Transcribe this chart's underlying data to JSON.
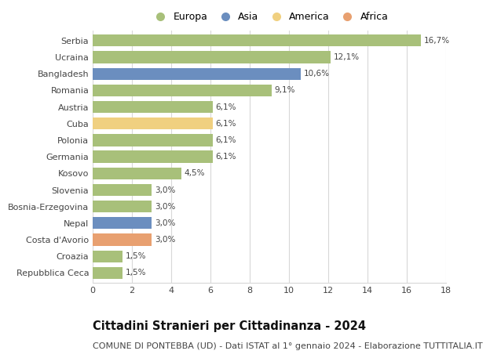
{
  "countries": [
    "Serbia",
    "Ucraina",
    "Bangladesh",
    "Romania",
    "Austria",
    "Cuba",
    "Polonia",
    "Germania",
    "Kosovo",
    "Slovenia",
    "Bosnia-Erzegovina",
    "Nepal",
    "Costa d'Avorio",
    "Croazia",
    "Repubblica Ceca"
  ],
  "values": [
    16.7,
    12.1,
    10.6,
    9.1,
    6.1,
    6.1,
    6.1,
    6.1,
    4.5,
    3.0,
    3.0,
    3.0,
    3.0,
    1.5,
    1.5
  ],
  "labels": [
    "16,7%",
    "12,1%",
    "10,6%",
    "9,1%",
    "6,1%",
    "6,1%",
    "6,1%",
    "6,1%",
    "4,5%",
    "3,0%",
    "3,0%",
    "3,0%",
    "3,0%",
    "1,5%",
    "1,5%"
  ],
  "continents": [
    "Europa",
    "Europa",
    "Asia",
    "Europa",
    "Europa",
    "America",
    "Europa",
    "Europa",
    "Europa",
    "Europa",
    "Europa",
    "Asia",
    "Africa",
    "Europa",
    "Europa"
  ],
  "colors": {
    "Europa": "#a8c07a",
    "Asia": "#6b8ebf",
    "America": "#f0d080",
    "Africa": "#e8a070"
  },
  "legend_order": [
    "Europa",
    "Asia",
    "America",
    "Africa"
  ],
  "title": "Cittadini Stranieri per Cittadinanza - 2024",
  "subtitle": "COMUNE DI PONTEBBA (UD) - Dati ISTAT al 1° gennaio 2024 - Elaborazione TUTTITALIA.IT",
  "xlim": [
    0,
    18
  ],
  "xticks": [
    0,
    2,
    4,
    6,
    8,
    10,
    12,
    14,
    16,
    18
  ],
  "background_color": "#ffffff",
  "grid_color": "#d8d8d8",
  "bar_height": 0.72,
  "title_fontsize": 10.5,
  "subtitle_fontsize": 8,
  "label_fontsize": 7.5,
  "tick_fontsize": 8,
  "legend_fontsize": 9
}
